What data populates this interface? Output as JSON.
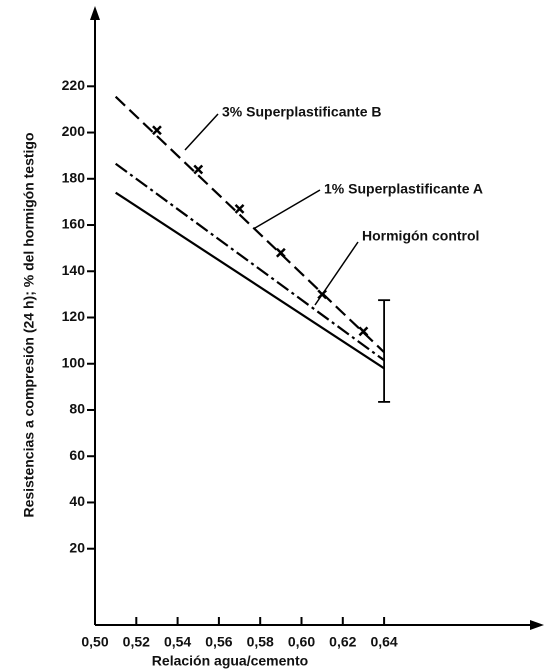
{
  "chart_data": {
    "type": "line",
    "xlabel": "Relación agua/cemento",
    "ylabel": "Resistencias a compresión (24 h); % del hormigón testigo",
    "xlim": [
      0.5,
      0.7155
    ],
    "ylim": [
      -13,
      253
    ],
    "xticks": [
      {
        "value": 0.5,
        "label": "0,50"
      },
      {
        "value": 0.52,
        "label": "0,52"
      },
      {
        "value": 0.54,
        "label": "0,54"
      },
      {
        "value": 0.56,
        "label": "0,56"
      },
      {
        "value": 0.58,
        "label": "0,58"
      },
      {
        "value": 0.6,
        "label": "0,60"
      },
      {
        "value": 0.62,
        "label": "0,62"
      },
      {
        "value": 0.64,
        "label": "0,64"
      }
    ],
    "yticks": [
      20,
      40,
      60,
      80,
      100,
      120,
      140,
      160,
      180,
      200,
      220
    ],
    "series": [
      {
        "name": "3% Superplastificante B",
        "color": "#000000",
        "dash": "13 6",
        "x": [
          0.51,
          0.64
        ],
        "values": [
          215.5,
          105
        ],
        "marker_x": [
          0.53,
          0.55,
          0.57,
          0.59,
          0.61,
          0.63
        ],
        "marker_values": [
          201,
          184,
          167,
          148,
          130,
          114
        ]
      },
      {
        "name": "1% Superplastificante A",
        "color": "#000000",
        "dash": "14 4 3 4",
        "x": [
          0.51,
          0.64
        ],
        "values": [
          186.5,
          101.5
        ]
      },
      {
        "name": "Hormigón control",
        "color": "#000000",
        "dash": "none",
        "x": [
          0.51,
          0.64
        ],
        "values": [
          174,
          98
        ]
      }
    ],
    "error_bar": {
      "x": 0.64,
      "low": 83.5,
      "high": 127.5
    }
  }
}
